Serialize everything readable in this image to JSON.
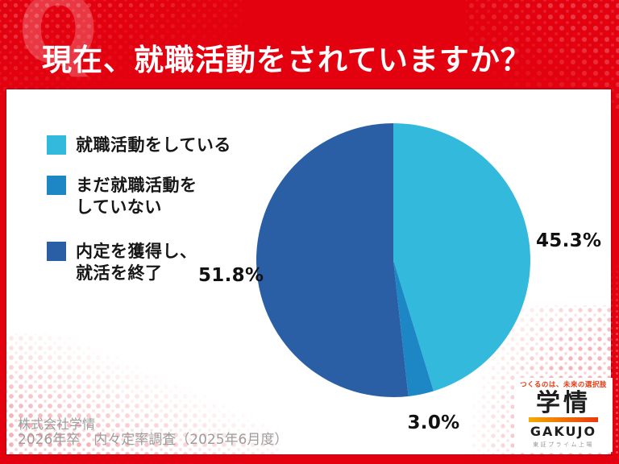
{
  "header": {
    "title": "現在、就職活動をされていますか？",
    "watermark": "Q"
  },
  "colors": {
    "frame_red": "#e3000f",
    "card_white": "#ffffff",
    "label_black": "#111111",
    "footer_gray": "#9d9d9d",
    "logo_accent": "#e8380d"
  },
  "chart_data": {
    "type": "pie",
    "title": "現在、就職活動をされていますか？",
    "labels": [
      "就職活動をしている",
      "まだ就職活動をしていない",
      "内定を獲得し、就活を終了"
    ],
    "legend_labels": [
      "就職活動をしている",
      "まだ就職活動を\nしていない",
      "内定を獲得し、\n就活を終了"
    ],
    "values": [
      45.3,
      3.0,
      51.8
    ],
    "display_values": [
      "45.3%",
      "3.0%",
      "51.8%"
    ],
    "colors": [
      "#33b9dc",
      "#1d87c6",
      "#2b5fa5"
    ],
    "start_angle": "top",
    "direction": "clockwise",
    "legend_position": "left"
  },
  "footer": {
    "company": "株式会社学情",
    "survey": "2026年卒　内々定率調査（2025年6月度）"
  },
  "logo": {
    "tagline": "つくるのは、未来の選択肢",
    "name": "学情",
    "name_en": "GAKUJO",
    "listing": "東証プライム上場"
  }
}
